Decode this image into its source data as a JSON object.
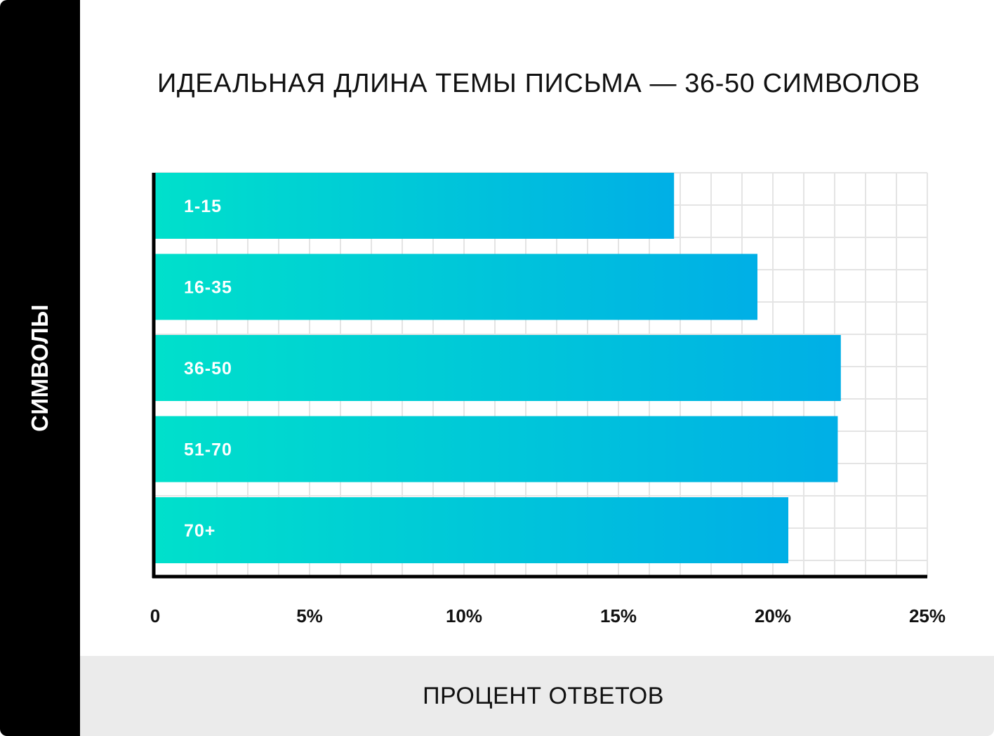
{
  "chart_data": {
    "type": "bar",
    "orientation": "horizontal",
    "title": "ИДЕАЛЬНАЯ ДЛИНА ТЕМЫ ПИСЬМА — 36-50 СИМВОЛОВ",
    "xlabel": "ПРОЦЕНТ ОТВЕТОВ",
    "ylabel": "СИМВОЛЫ",
    "categories": [
      "1-15",
      "16-35",
      "36-50",
      "51-70",
      "70+"
    ],
    "values": [
      16.8,
      19.5,
      22.2,
      22.1,
      20.5
    ],
    "xlim": [
      0,
      25
    ],
    "xticks": [
      0,
      5,
      10,
      15,
      20,
      25
    ],
    "xtick_labels": [
      "0",
      "5%",
      "10%",
      "15%",
      "20%",
      "25%"
    ],
    "grid": true,
    "colors": {
      "bar_gradient_start": "#00e0cb",
      "bar_gradient_end": "#00afe6",
      "grid": "#e4e4e4",
      "axis": "#000000"
    }
  }
}
